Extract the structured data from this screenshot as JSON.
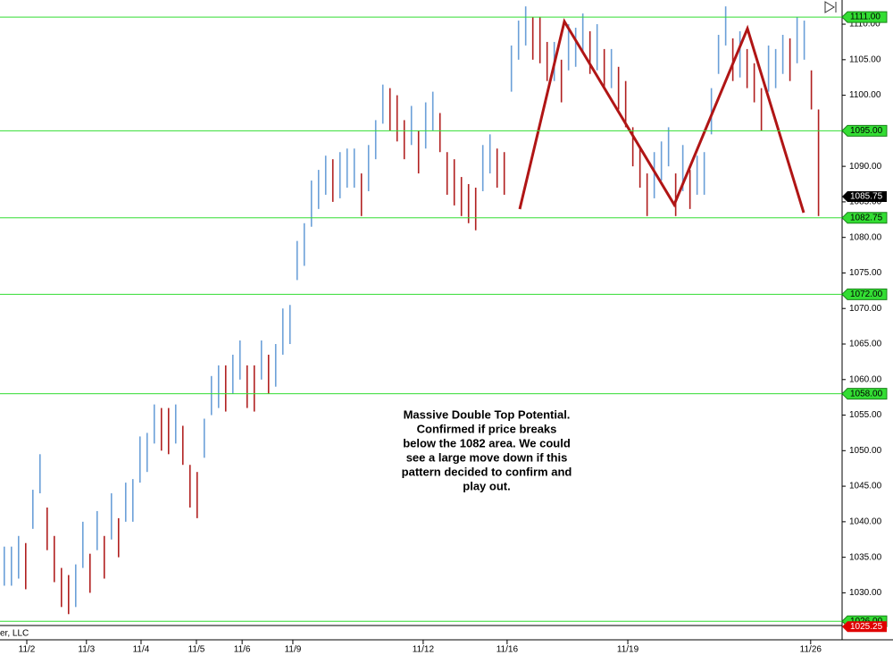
{
  "chart_data": {
    "type": "ohlc",
    "up_color": "#6a9fd8",
    "down_color": "#b01e1e",
    "xlim": [
      -0.6,
      117.3
    ],
    "ylim": [
      1025.4,
      1113.4
    ],
    "high": [
      1036.5,
      1036.5,
      1038,
      1037,
      1044.5,
      1049.5,
      1042,
      1038,
      1033.5,
      1032.5,
      1034,
      1040,
      1035.5,
      1041.5,
      1038,
      1044,
      1040.5,
      1045.5,
      1046,
      1052,
      1052.5,
      1056.5,
      1056,
      1056,
      1056.5,
      1053.5,
      1048,
      1047,
      1054.5,
      1060.5,
      1062,
      1062,
      1063.5,
      1065.5,
      1062,
      1062,
      1065.5,
      1063.5,
      1065,
      1070,
      1070.5,
      1079.5,
      1082,
      1088,
      1089.5,
      1091.5,
      1091,
      1092,
      1092.5,
      1092.5,
      1089,
      1093,
      1096.5,
      1101.5,
      1101,
      1100,
      1096.5,
      1098.5,
      1095,
      1099,
      1100.5,
      1097.5,
      1092,
      1091,
      1088.5,
      1087.5,
      1087,
      1093,
      1094.5,
      1092.5,
      1092,
      1107,
      1110.5,
      1112.5,
      1111,
      1111,
      1107.5,
      1107.5,
      1105,
      1110,
      1109.5,
      1111.5,
      1109,
      1110,
      1106.5,
      1106.5,
      1104,
      1102,
      1095.5,
      1092.5,
      1089,
      1092,
      1093.5,
      1095.5,
      1089,
      1093,
      1089.5,
      1091.5,
      1092,
      1101,
      1108.5,
      1112.5,
      1108,
      1109,
      1106.5,
      1104.5,
      1101,
      1107,
      1106.5,
      1108.5,
      1108,
      1111,
      1110.5,
      1103.5,
      1098
    ],
    "low": [
      1031,
      1031,
      1032,
      1030.5,
      1039,
      1044,
      1036,
      1031.5,
      1028,
      1027,
      1028,
      1033.5,
      1030,
      1036,
      1032,
      1037.5,
      1035,
      1040,
      1040,
      1045.5,
      1047,
      1051,
      1050,
      1049.5,
      1051,
      1048,
      1042,
      1040.5,
      1049,
      1055,
      1056,
      1055.5,
      1058,
      1060,
      1056,
      1055.5,
      1060,
      1058,
      1059,
      1063.5,
      1065,
      1074,
      1076,
      1081.5,
      1084,
      1086,
      1085,
      1085.5,
      1087,
      1087,
      1083,
      1086.5,
      1091,
      1096,
      1095,
      1093.5,
      1091,
      1093,
      1089,
      1092.5,
      1095,
      1092,
      1086,
      1084.5,
      1083,
      1082,
      1081,
      1086.5,
      1089,
      1087,
      1086,
      1100.5,
      1105,
      1107,
      1105,
      1104.5,
      1102,
      1102,
      1099,
      1103.5,
      1104,
      1106,
      1103,
      1103.5,
      1101,
      1101,
      1098,
      1095.5,
      1090,
      1087,
      1083,
      1085.5,
      1088,
      1090,
      1083,
      1086.5,
      1084,
      1086,
      1086,
      1094.5,
      1103,
      1107,
      1102,
      1102.5,
      1101,
      1099,
      1095,
      1100.5,
      1101,
      1103,
      1102,
      1104.5,
      1105,
      1098,
      1083
    ],
    "yticks": [
      {
        "value": 1030,
        "label": "1030.00"
      },
      {
        "value": 1035,
        "label": "1035.00"
      },
      {
        "value": 1040,
        "label": "1040.00"
      },
      {
        "value": 1045,
        "label": "1045.00"
      },
      {
        "value": 1050,
        "label": "1050.00"
      },
      {
        "value": 1055,
        "label": "1055.00"
      },
      {
        "value": 1060,
        "label": "1060.00"
      },
      {
        "value": 1065,
        "label": "1065.00"
      },
      {
        "value": 1070,
        "label": "1070.00"
      },
      {
        "value": 1075,
        "label": "1075.00"
      },
      {
        "value": 1080,
        "label": "1080.00"
      },
      {
        "value": 1085,
        "label": "1085.00"
      },
      {
        "value": 1090,
        "label": "1090.00"
      },
      {
        "value": 1095,
        "label": "1095.00"
      },
      {
        "value": 1100,
        "label": "1100.00"
      },
      {
        "value": 1105,
        "label": "1105.00"
      },
      {
        "value": 1110,
        "label": "1110.00"
      }
    ],
    "xticks": [
      {
        "value": 3.15,
        "label": "11/2"
      },
      {
        "value": 11.5,
        "label": "11/3"
      },
      {
        "value": 19.15,
        "label": "11/4"
      },
      {
        "value": 26.9,
        "label": "11/5"
      },
      {
        "value": 33.3,
        "label": "11/6"
      },
      {
        "value": 40.4,
        "label": "11/9"
      },
      {
        "value": 58.65,
        "label": "11/12"
      },
      {
        "value": 70.4,
        "label": "11/16"
      },
      {
        "value": 87.3,
        "label": "11/19"
      },
      {
        "value": 112.9,
        "label": "11/26"
      }
    ],
    "levels": [
      {
        "value": 1111,
        "label": "1111.00"
      },
      {
        "value": 1095,
        "label": "1095.00"
      },
      {
        "value": 1082.75,
        "label": "1082.75"
      },
      {
        "value": 1072,
        "label": "1072.00"
      },
      {
        "value": 1058,
        "label": "1058.00"
      },
      {
        "value": 1026,
        "label": "1026.00"
      }
    ],
    "level_color": "#33dd33",
    "price_tags": [
      {
        "value": 1085.75,
        "label": "1085.75",
        "color": "#000000"
      },
      {
        "value": 1025.25,
        "label": "1025.25",
        "color": "#e00000"
      }
    ],
    "annotation": [
      "Massive Double Top Potential.",
      "Confirmed if price breaks",
      "below the 1082 area. We could",
      "see a large move down if this",
      "pattern decided to confirm and",
      "play out."
    ],
    "footer_text": "er, LLC"
  }
}
